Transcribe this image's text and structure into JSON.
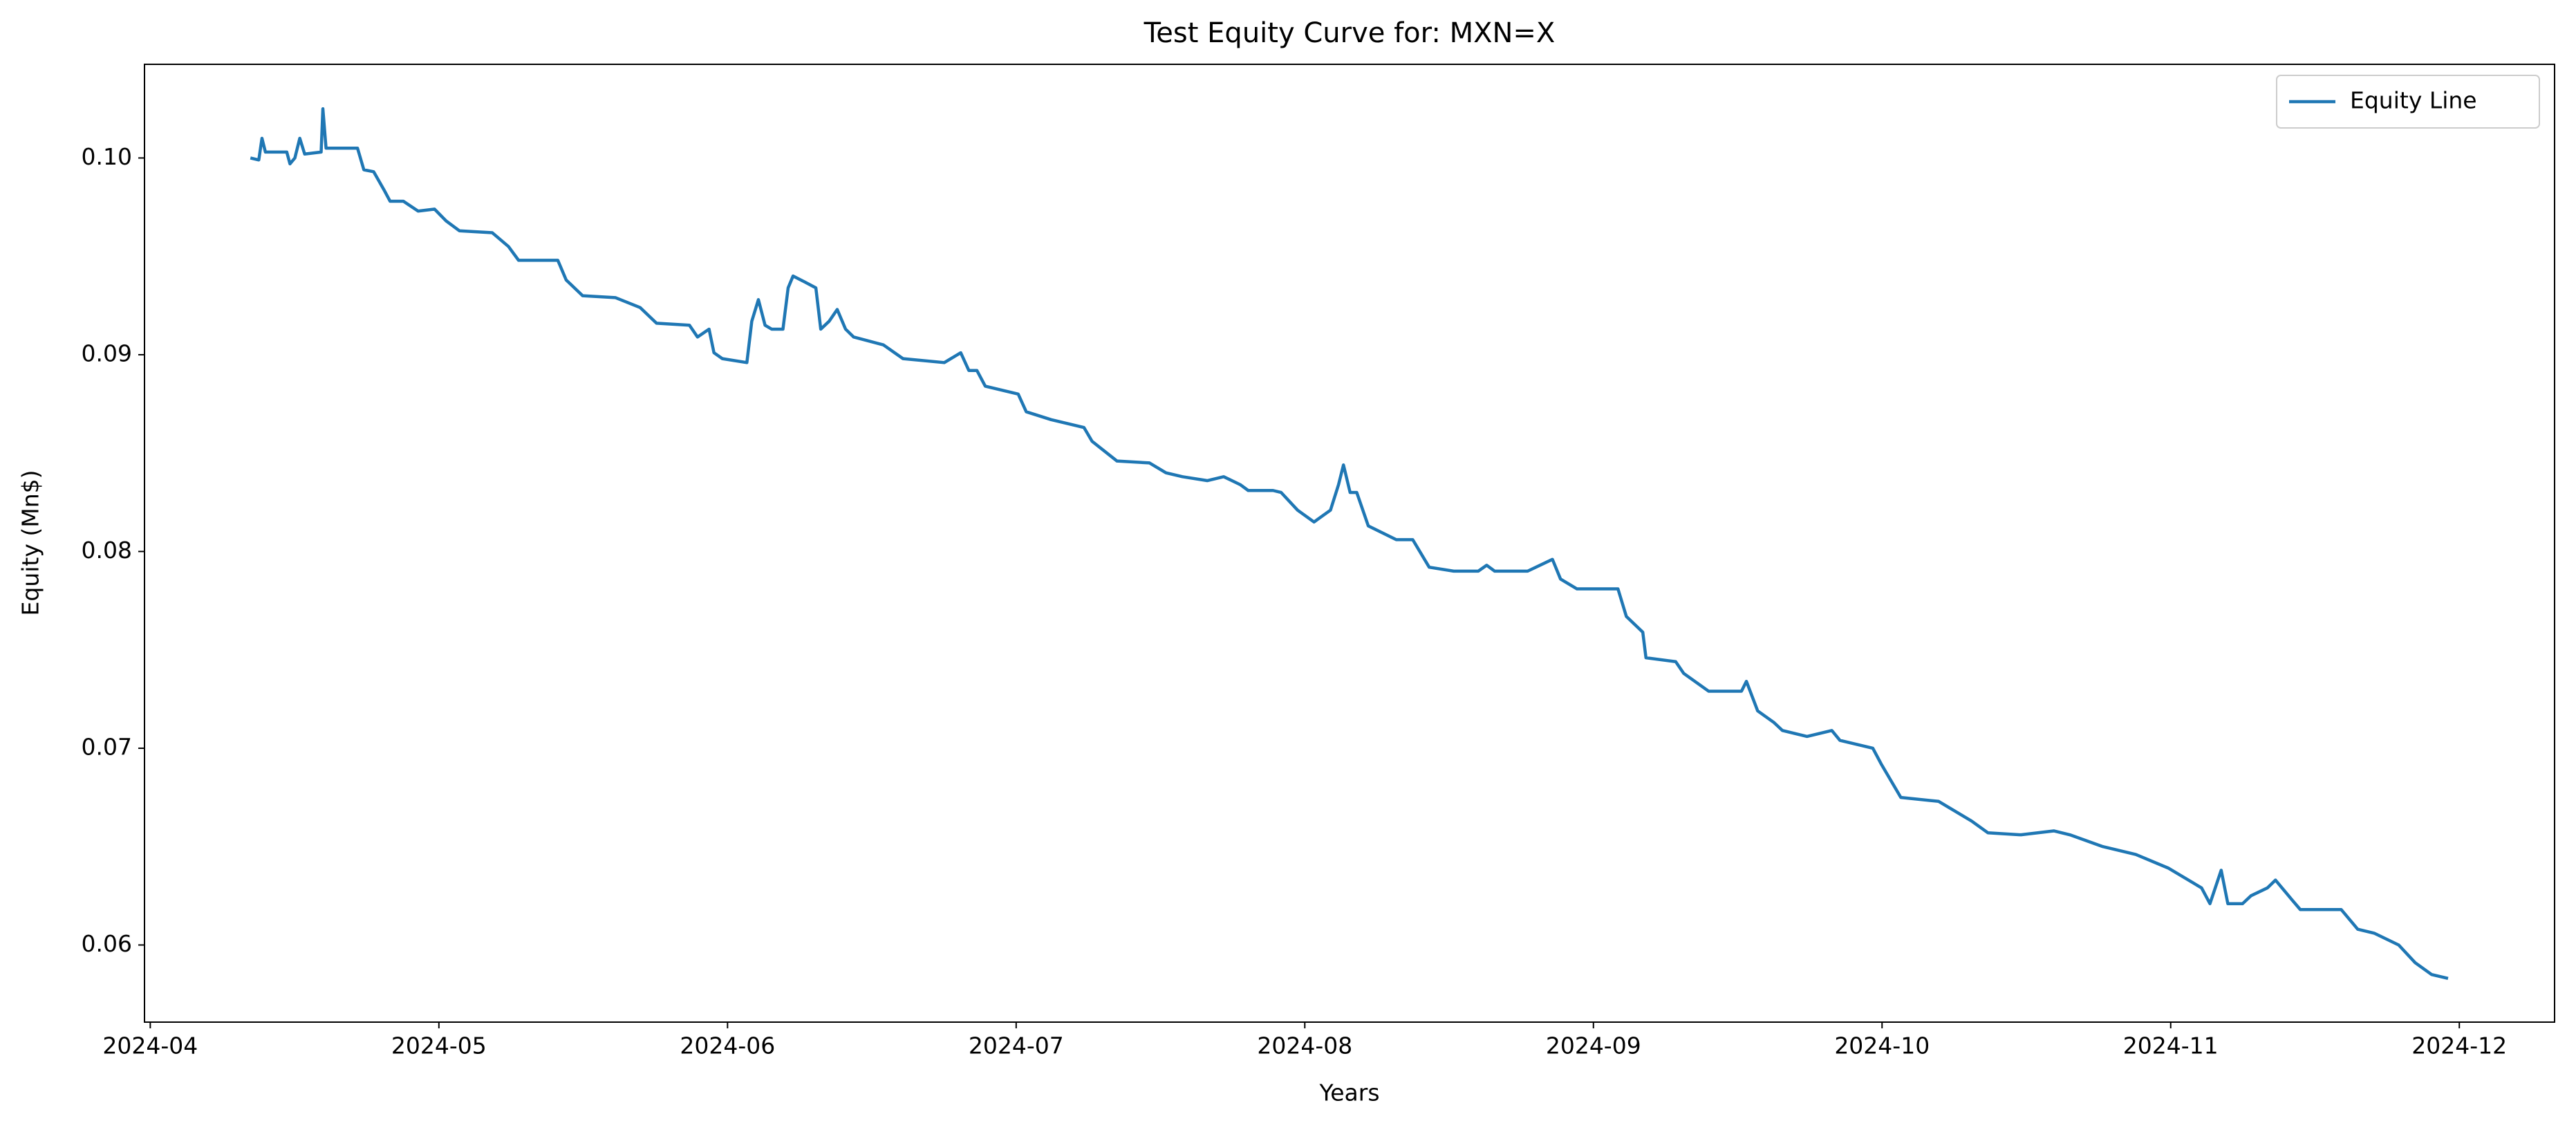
{
  "chart_data": {
    "type": "line",
    "title": "Test Equity Curve for: MXN=X",
    "x_label": "Years",
    "y_label": "Equity (Mn$)",
    "legend": "upper right",
    "grid": false,
    "xlim": [
      -0.02,
      8.33
    ],
    "ylim": [
      0.05608,
      0.10476
    ],
    "xticks": [
      {
        "value": 0,
        "label": "2024-04"
      },
      {
        "value": 1,
        "label": "2024-05"
      },
      {
        "value": 2,
        "label": "2024-06"
      },
      {
        "value": 3,
        "label": "2024-07"
      },
      {
        "value": 4,
        "label": "2024-08"
      },
      {
        "value": 5,
        "label": "2024-09"
      },
      {
        "value": 6,
        "label": "2024-10"
      },
      {
        "value": 7,
        "label": "2024-11"
      },
      {
        "value": 8,
        "label": "2024-12"
      }
    ],
    "yticks": [
      {
        "value": 0.06,
        "label": "0.06"
      },
      {
        "value": 0.07,
        "label": "0.07"
      },
      {
        "value": 0.08,
        "label": "0.08"
      },
      {
        "value": 0.09,
        "label": "0.09"
      },
      {
        "value": 0.1,
        "label": "0.10"
      }
    ],
    "x": [
      0.347,
      0.376,
      0.387,
      0.399,
      0.473,
      0.484,
      0.501,
      0.518,
      0.535,
      0.592,
      0.598,
      0.609,
      0.718,
      0.74,
      0.774,
      0.809,
      0.831,
      0.877,
      0.928,
      0.985,
      1.025,
      1.071,
      1.185,
      1.241,
      1.276,
      1.412,
      1.441,
      1.498,
      1.612,
      1.697,
      1.754,
      1.868,
      1.896,
      1.936,
      1.953,
      1.982,
      2.067,
      2.084,
      2.107,
      2.13,
      2.153,
      2.192,
      2.21,
      2.227,
      2.267,
      2.306,
      2.323,
      2.352,
      2.38,
      2.409,
      2.437,
      2.54,
      2.608,
      2.751,
      2.808,
      2.836,
      2.864,
      2.893,
      3.007,
      3.035,
      3.121,
      3.235,
      3.263,
      3.349,
      3.462,
      3.519,
      3.576,
      3.662,
      3.719,
      3.776,
      3.804,
      3.89,
      3.918,
      3.975,
      4.032,
      4.089,
      4.117,
      4.134,
      4.157,
      4.18,
      4.22,
      4.317,
      4.374,
      4.431,
      4.516,
      4.601,
      4.63,
      4.658,
      4.772,
      4.858,
      4.886,
      4.943,
      5.085,
      5.114,
      5.171,
      5.182,
      5.285,
      5.313,
      5.399,
      5.513,
      5.53,
      5.569,
      5.626,
      5.655,
      5.74,
      5.826,
      5.854,
      5.968,
      5.997,
      6.065,
      6.196,
      6.31,
      6.367,
      6.481,
      6.595,
      6.651,
      6.765,
      6.879,
      6.993,
      7.107,
      7.136,
      7.175,
      7.198,
      7.249,
      7.278,
      7.335,
      7.363,
      7.42,
      7.449,
      7.591,
      7.648,
      7.705,
      7.79,
      7.847,
      7.904,
      7.961
    ],
    "series": [
      {
        "name": "Equity Line",
        "color": "#1f77b4",
        "values": [
          0.1,
          0.0999,
          0.101,
          0.1003,
          0.1003,
          0.0997,
          0.1,
          0.101,
          0.1002,
          0.1003,
          0.1025,
          0.1005,
          0.1005,
          0.0994,
          0.0993,
          0.0984,
          0.0978,
          0.0978,
          0.0973,
          0.0974,
          0.0968,
          0.0963,
          0.0962,
          0.0955,
          0.0948,
          0.0948,
          0.0938,
          0.093,
          0.0929,
          0.0924,
          0.0916,
          0.0915,
          0.0909,
          0.0913,
          0.0901,
          0.0898,
          0.0896,
          0.0917,
          0.0928,
          0.0915,
          0.0913,
          0.0913,
          0.0934,
          0.094,
          0.0937,
          0.0934,
          0.0913,
          0.0917,
          0.0923,
          0.0913,
          0.0909,
          0.0905,
          0.0898,
          0.0896,
          0.0901,
          0.0892,
          0.0892,
          0.0884,
          0.088,
          0.0871,
          0.0867,
          0.0863,
          0.0856,
          0.0846,
          0.0845,
          0.084,
          0.0838,
          0.0836,
          0.0838,
          0.0834,
          0.0831,
          0.0831,
          0.083,
          0.0821,
          0.0815,
          0.0821,
          0.0834,
          0.0844,
          0.083,
          0.083,
          0.0813,
          0.0806,
          0.0806,
          0.0792,
          0.079,
          0.079,
          0.0793,
          0.079,
          0.079,
          0.0796,
          0.0786,
          0.0781,
          0.0781,
          0.0767,
          0.0759,
          0.0746,
          0.0744,
          0.0738,
          0.0729,
          0.0729,
          0.0734,
          0.0719,
          0.0713,
          0.0709,
          0.0706,
          0.0709,
          0.0704,
          0.07,
          0.0692,
          0.0675,
          0.0673,
          0.0663,
          0.0657,
          0.0656,
          0.0658,
          0.0656,
          0.065,
          0.0646,
          0.0639,
          0.0629,
          0.0621,
          0.0638,
          0.0621,
          0.0621,
          0.0625,
          0.0629,
          0.0633,
          0.0623,
          0.0618,
          0.0618,
          0.0608,
          0.0606,
          0.06,
          0.0591,
          0.0585,
          0.0583
        ]
      }
    ]
  }
}
